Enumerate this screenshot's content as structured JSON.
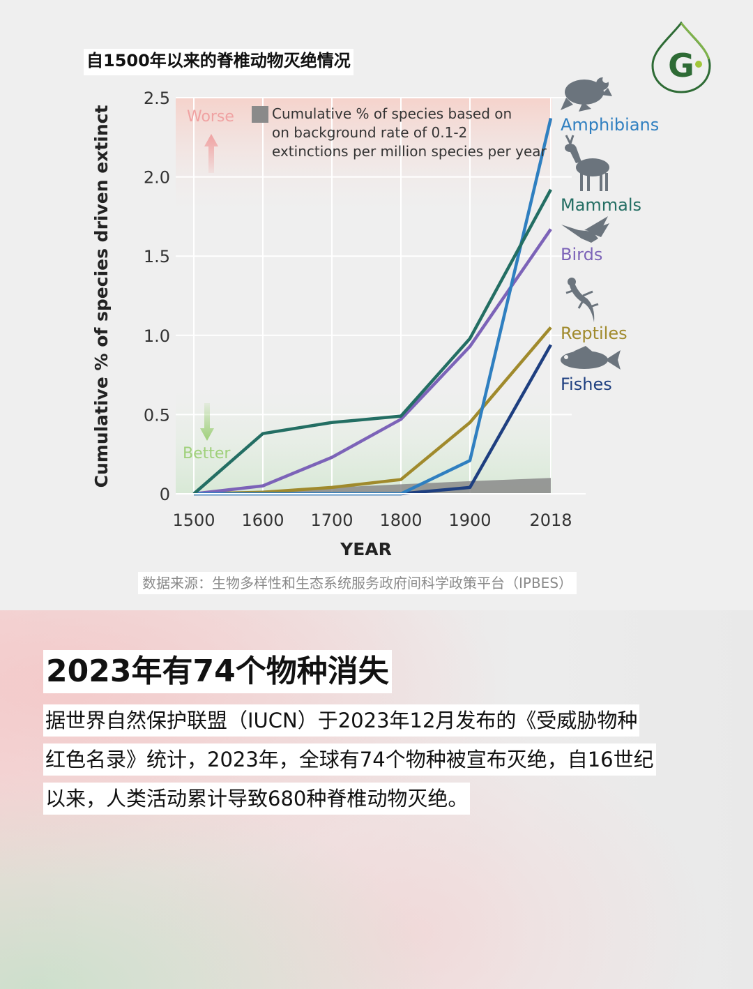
{
  "chart_title": "自1500年以来的脊椎动物灭绝情况",
  "source_note": "数据来源：生物多样性和生态系统服务政府间科学政策平台（IPBES）",
  "headline": "2023年有74个物种消失",
  "body_lines": [
    "据世界自然保护联盟（IUCN）于2023年12月发布的《受威胁物种",
    "红色名录》统计，2023年，全球有74个物种被宣布灭绝，自16世纪",
    "以来，人类活动累计导致680种脊椎动物灭绝。"
  ],
  "logo_letter": "G",
  "colors": {
    "amphibians": "#2f7fc0",
    "mammals": "#236e63",
    "birds": "#7c63b8",
    "reptiles": "#a08a2c",
    "fishes": "#1e3f80",
    "worse": "#f0a2a2",
    "better": "#9fd07a",
    "background_rate": "#8a8a8a",
    "logo": "#2e6b35"
  },
  "chart_data": {
    "type": "line",
    "title": "",
    "xlabel": "YEAR",
    "ylabel": "Cumulative % of species driven extinct",
    "x": [
      1500,
      1600,
      1700,
      1800,
      1900,
      2018
    ],
    "x_tick_labels": [
      "1500",
      "1600",
      "1700",
      "1800",
      "1900",
      "2018"
    ],
    "y_ticks": [
      0,
      0.5,
      1.0,
      1.5,
      2.0,
      2.5
    ],
    "y_tick_labels": [
      "0",
      "0.5",
      "1.0",
      "1.5",
      "2.0",
      "2.5"
    ],
    "ylim": [
      0,
      2.5
    ],
    "grid": true,
    "series": [
      {
        "name": "Amphibians",
        "values": [
          0,
          0,
          0,
          0,
          0.21,
          2.37
        ],
        "color_key": "amphibians",
        "icon": "frog-icon"
      },
      {
        "name": "Mammals",
        "values": [
          0,
          0.38,
          0.45,
          0.49,
          0.98,
          1.92
        ],
        "color_key": "mammals",
        "icon": "deer-icon"
      },
      {
        "name": "Birds",
        "values": [
          0,
          0.05,
          0.23,
          0.47,
          0.93,
          1.67
        ],
        "color_key": "birds",
        "icon": "hummingbird-icon"
      },
      {
        "name": "Reptiles",
        "values": [
          0,
          0.01,
          0.04,
          0.09,
          0.45,
          1.05
        ],
        "color_key": "reptiles",
        "icon": "gecko-icon"
      },
      {
        "name": "Fishes",
        "values": [
          0,
          0,
          0,
          0,
          0.04,
          0.94
        ],
        "color_key": "fishes",
        "icon": "fish-icon"
      }
    ],
    "background_rate": {
      "label_lines": [
        "Cumulative % of species based on",
        "on background rate of 0.1-2",
        "extinctions per million species per year"
      ],
      "low_values": [
        0,
        0,
        0,
        0,
        0,
        0
      ],
      "high_values": [
        0,
        0.02,
        0.04,
        0.06,
        0.08,
        0.1
      ]
    },
    "annotations": {
      "worse": "Worse",
      "better": "Better"
    }
  }
}
